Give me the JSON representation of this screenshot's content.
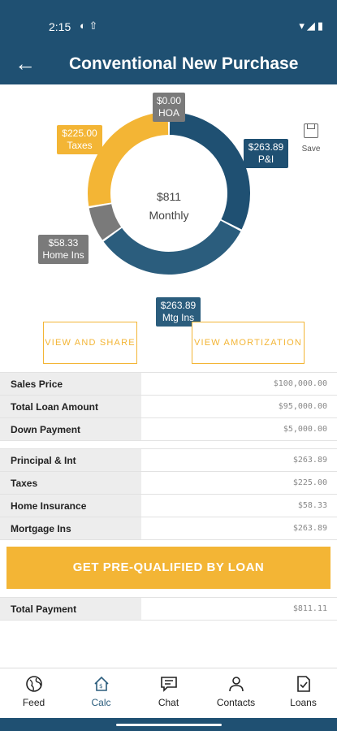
{
  "status": {
    "time": "2:15",
    "left_icons": "◐ ⇧",
    "right_icons": "▾◢▮"
  },
  "header": {
    "title": "Conventional New Purchase",
    "back_icon": "arrow-left-icon"
  },
  "chart_data": {
    "type": "pie",
    "categories": [
      "HOA",
      "P&I",
      "Mtg Ins",
      "Home Ins",
      "Taxes"
    ],
    "values": [
      0.0,
      263.89,
      263.89,
      58.33,
      225.0
    ],
    "colors": [
      "#7a7a7a",
      "#1f5072",
      "#2b5d7d",
      "#7a7a7a",
      "#f3b535"
    ],
    "center_value": "$811",
    "center_label": "Monthly"
  },
  "tags": {
    "hoa": {
      "value": "$0.00",
      "name": "HOA"
    },
    "pi": {
      "value": "$263.89",
      "name": "P&I"
    },
    "taxes": {
      "value": "$225.00",
      "name": "Taxes"
    },
    "homeins": {
      "value": "$58.33",
      "name": "Home Ins"
    },
    "mtgins": {
      "value": "$263.89",
      "name": "Mtg Ins"
    }
  },
  "save": {
    "label": "Save",
    "icon": "save-icon"
  },
  "actions": {
    "view_share": "VIEW AND SHARE",
    "view_amortization": "VIEW AMORTIZATION"
  },
  "loan_table": [
    {
      "label": "Sales Price",
      "value": "$100,000.00"
    },
    {
      "label": "Total Loan Amount",
      "value": "$95,000.00"
    },
    {
      "label": "Down Payment",
      "value": "$5,000.00"
    }
  ],
  "payment_table": [
    {
      "label": "Principal & Int",
      "value": "$263.89"
    },
    {
      "label": "Taxes",
      "value": "$225.00"
    },
    {
      "label": "Home Insurance",
      "value": "$58.33"
    },
    {
      "label": "Mortgage Ins",
      "value": "$263.89"
    }
  ],
  "cta": {
    "label": "GET PRE-QUALIFIED BY LOAN"
  },
  "total": {
    "label": "Total Payment",
    "value": "$811.11"
  },
  "nav": [
    {
      "label": "Feed",
      "icon": "globe-icon"
    },
    {
      "label": "Calc",
      "icon": "house-icon"
    },
    {
      "label": "Chat",
      "icon": "chat-icon"
    },
    {
      "label": "Contacts",
      "icon": "contacts-icon"
    },
    {
      "label": "Loans",
      "icon": "document-check-icon"
    }
  ]
}
